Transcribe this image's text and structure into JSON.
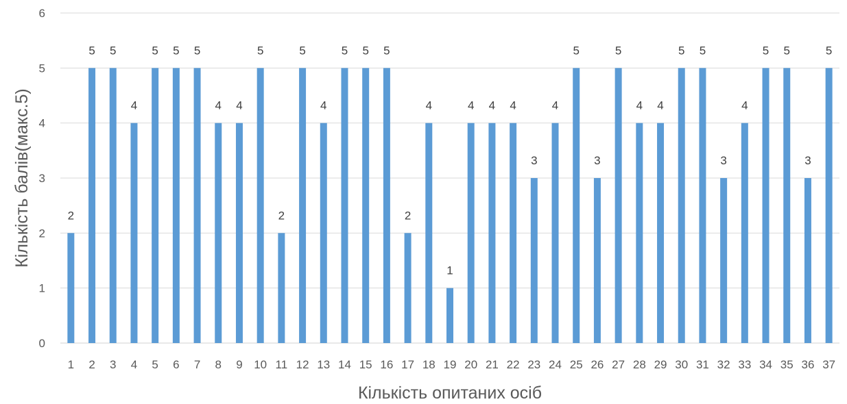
{
  "chart_data": {
    "type": "bar",
    "title": "",
    "xlabel": "Кількість опитаних осіб",
    "ylabel": "Кількість балів(макс.5)",
    "ylim": [
      0,
      6
    ],
    "yticks": [
      "0",
      "1",
      "2",
      "3",
      "4",
      "5",
      "6"
    ],
    "grid": true,
    "bar_color": "#5B9BD5",
    "categories": [
      "1",
      "2",
      "3",
      "4",
      "5",
      "6",
      "7",
      "8",
      "9",
      "10",
      "11",
      "12",
      "13",
      "14",
      "15",
      "16",
      "17",
      "18",
      "19",
      "20",
      "21",
      "22",
      "23",
      "24",
      "25",
      "26",
      "27",
      "28",
      "29",
      "30",
      "31",
      "32",
      "33",
      "34",
      "35",
      "36",
      "37"
    ],
    "values": [
      2,
      5,
      5,
      4,
      5,
      5,
      5,
      4,
      4,
      5,
      2,
      5,
      4,
      5,
      5,
      5,
      2,
      4,
      1,
      4,
      4,
      4,
      3,
      4,
      5,
      3,
      5,
      4,
      4,
      5,
      5,
      3,
      4,
      5,
      5,
      3,
      5
    ],
    "data_labels": [
      "2",
      "5",
      "5",
      "4",
      "5",
      "5",
      "5",
      "4",
      "4",
      "5",
      "2",
      "5",
      "4",
      "5",
      "5",
      "5",
      "2",
      "4",
      "1",
      "4",
      "4",
      "4",
      "3",
      "4",
      "5",
      "3",
      "5",
      "4",
      "4",
      "5",
      "5",
      "3",
      "4",
      "5",
      "5",
      "3",
      "5"
    ]
  }
}
